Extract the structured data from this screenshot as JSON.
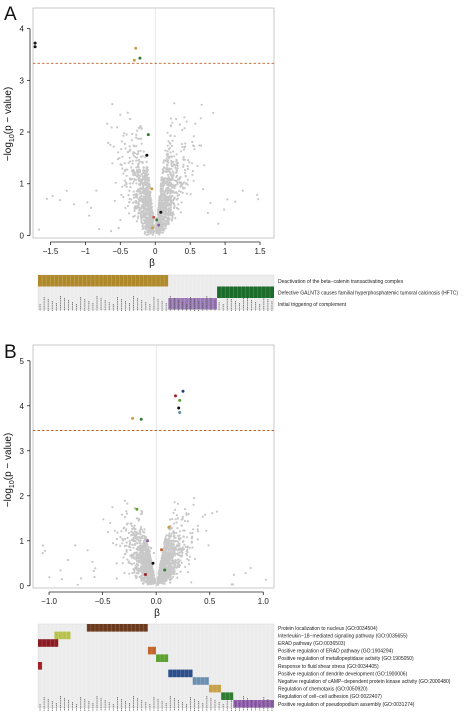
{
  "panels": [
    {
      "letter": "A",
      "ylabel_main": "−log",
      "ylabel_sub": "10",
      "ylabel_tail": "(p − value)",
      "xlabel": "β"
    },
    {
      "letter": "B",
      "ylabel_main": "−log",
      "ylabel_sub": "10",
      "ylabel_tail": "(p − value)",
      "xlabel": "β"
    }
  ],
  "chart_data": [
    {
      "type": "scatter",
      "title": "",
      "xlabel": "β",
      "ylabel": "−log10(p − value)",
      "xlim": [
        -1.75,
        1.7
      ],
      "ylim": [
        -0.05,
        4.4
      ],
      "xticks": [
        -1.5,
        -1,
        -0.5,
        0,
        0.5,
        1,
        1.5
      ],
      "yticks": [
        0,
        1,
        2,
        3,
        4
      ],
      "xtick_labels": [
        "−1.5",
        "−1",
        "−0.5",
        "0",
        "0.5",
        "1",
        "1.5"
      ],
      "ytick_labels": [
        "0",
        "1",
        "2",
        "3",
        "4"
      ],
      "threshold_y": 3.33,
      "grid": false,
      "background_points_color": "#c8c8c8",
      "highlighted_points": [
        {
          "x": -1.72,
          "y": 3.72,
          "color": "#111111"
        },
        {
          "x": -1.72,
          "y": 3.65,
          "color": "#111111"
        },
        {
          "x": -0.28,
          "y": 3.62,
          "color": "#c7a14a"
        },
        {
          "x": -0.22,
          "y": 3.43,
          "color": "#2e7d32"
        },
        {
          "x": -0.3,
          "y": 3.39,
          "color": "#c7a14a"
        },
        {
          "x": -0.1,
          "y": 1.95,
          "color": "#2e7d32"
        },
        {
          "x": -0.12,
          "y": 1.55,
          "color": "#111111"
        },
        {
          "x": -0.05,
          "y": 0.9,
          "color": "#c7a14a"
        },
        {
          "x": -0.02,
          "y": 0.35,
          "color": "#d05050"
        },
        {
          "x": 0.02,
          "y": 0.3,
          "color": "#2e7d32"
        },
        {
          "x": 0.05,
          "y": 0.2,
          "color": "#8e5fa8"
        },
        {
          "x": -0.04,
          "y": 0.15,
          "color": "#c7a14a"
        },
        {
          "x": 0.08,
          "y": 0.45,
          "color": "#111111"
        }
      ],
      "heatmap": {
        "type": "heatmap",
        "n_columns": 58,
        "rows": [
          {
            "label": "Deactivation of the beta−catenin transactivating complex",
            "color": "#b08a2a",
            "start": 0,
            "end": 32
          },
          {
            "label": "Defective GALNT3 causes familial hyperphosphatemic tumoral calcinosis (HFTC)",
            "color": "#1b6b2a",
            "start": 44,
            "end": 58
          },
          {
            "label": "Initial triggering of complement",
            "color": "#9a78b8",
            "start": 32,
            "end": 44
          }
        ]
      }
    },
    {
      "type": "scatter",
      "title": "",
      "xlabel": "β",
      "ylabel": "−log10(p − value)",
      "xlim": [
        -1.15,
        1.1
      ],
      "ylim": [
        -0.05,
        5.35
      ],
      "xticks": [
        -1,
        -0.5,
        0,
        0.5,
        1
      ],
      "yticks": [
        0,
        1,
        2,
        3,
        4,
        5
      ],
      "xtick_labels": [
        "−1.0",
        "−0.5",
        "0.0",
        "0.5",
        "1.0"
      ],
      "ytick_labels": [
        "0",
        "1",
        "2",
        "3",
        "4",
        "5"
      ],
      "threshold_y": 3.45,
      "grid": false,
      "background_points_color": "#c8c8c8",
      "highlighted_points": [
        {
          "x": 0.25,
          "y": 4.32,
          "color": "#1f3f7a"
        },
        {
          "x": 0.18,
          "y": 4.22,
          "color": "#a0202a"
        },
        {
          "x": 0.22,
          "y": 4.12,
          "color": "#5aa02c"
        },
        {
          "x": 0.21,
          "y": 3.95,
          "color": "#111111"
        },
        {
          "x": 0.22,
          "y": 3.85,
          "color": "#5e8aa8"
        },
        {
          "x": -0.22,
          "y": 3.72,
          "color": "#c7a14a"
        },
        {
          "x": -0.14,
          "y": 3.7,
          "color": "#2e7d32"
        },
        {
          "x": -0.18,
          "y": 1.7,
          "color": "#5aa02c"
        },
        {
          "x": 0.12,
          "y": 1.3,
          "color": "#c7a14a"
        },
        {
          "x": -0.08,
          "y": 1.0,
          "color": "#8e5fa8"
        },
        {
          "x": 0.05,
          "y": 0.8,
          "color": "#c0642c"
        },
        {
          "x": -0.03,
          "y": 0.5,
          "color": "#111111"
        },
        {
          "x": 0.08,
          "y": 0.35,
          "color": "#2e7d32"
        },
        {
          "x": -0.1,
          "y": 0.25,
          "color": "#a0202a"
        }
      ],
      "heatmap": {
        "type": "heatmap",
        "n_columns": 58,
        "rows": [
          {
            "label": "Protein localization to nucleus (GO:0034504)",
            "color": "#6b3a1e",
            "start": 12,
            "end": 27
          },
          {
            "label": "Interleukin−18−mediated signaling pathway (GO:0035655)",
            "color": "#b7c24a",
            "start": 4,
            "end": 8
          },
          {
            "label": "ERAD pathway (GO:0036503)",
            "color": "#8b1a22",
            "start": 0,
            "end": 5
          },
          {
            "label": "Positive regulation of ERAD pathway (GO:1904294)",
            "color": "#c0642c",
            "start": 27,
            "end": 29
          },
          {
            "label": "Positive regulation of metallopeptidase activity (GO:1905050)",
            "color": "#5aa02c",
            "start": 29,
            "end": 32
          },
          {
            "label": "Response to fluid shear stress (GO:0034405)",
            "color": "#a0202a",
            "start": 0,
            "end": 1
          },
          {
            "label": "Positive regulation of dendrite development (GO:1900006)",
            "color": "#2a4f8a",
            "start": 32,
            "end": 38
          },
          {
            "label": "Negative regulation of cAMP−dependent protein kinase activity (GO:2000480)",
            "color": "#6a8fb0",
            "start": 38,
            "end": 42
          },
          {
            "label": "Regulation of chemotaxis (GO:0050920)",
            "color": "#c7a14a",
            "start": 42,
            "end": 45
          },
          {
            "label": "Regulation of cell−cell adhesion (GO:0022407)",
            "color": "#2e7d32",
            "start": 45,
            "end": 48
          },
          {
            "label": "Positive regulation of pseudopodium assembly (GO:0031274)",
            "color": "#8e5fa8",
            "start": 48,
            "end": 58
          }
        ]
      }
    }
  ]
}
